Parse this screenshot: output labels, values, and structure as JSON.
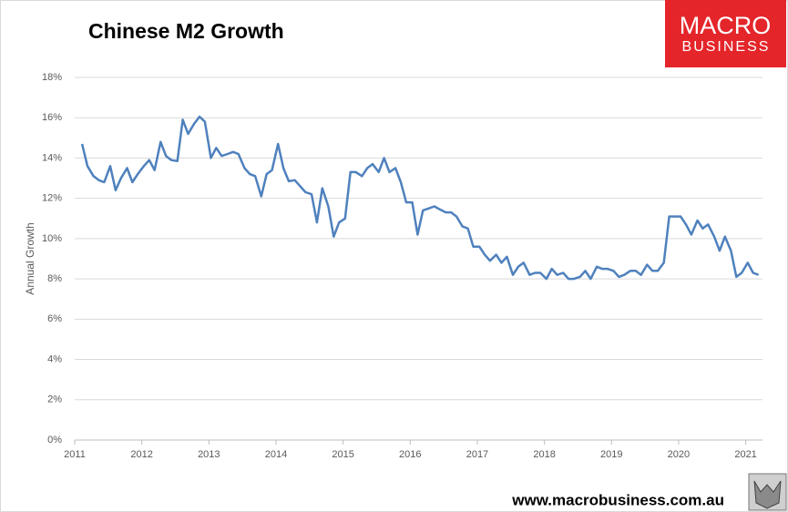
{
  "chart_data": {
    "type": "line",
    "title": "Chinese M2 Growth",
    "y_label": "Annual Growth",
    "logo": [
      "MACRO",
      "BUSINESS"
    ],
    "footer": "www.macrobusiness.com.au",
    "xlim": [
      2011,
      2021.25
    ],
    "xticks": [
      2011,
      2012,
      2013,
      2014,
      2015,
      2016,
      2017,
      2018,
      2019,
      2020,
      2021
    ],
    "ylim": [
      0,
      18
    ],
    "yticks": [
      {
        "value": 0,
        "label": "0%"
      },
      {
        "value": 2,
        "label": "2%"
      },
      {
        "value": 4,
        "label": "4%"
      },
      {
        "value": 6,
        "label": "6%"
      },
      {
        "value": 8,
        "label": "8%"
      },
      {
        "value": 10,
        "label": "10%"
      },
      {
        "value": 12,
        "label": "12%"
      },
      {
        "value": 14,
        "label": "14%"
      },
      {
        "value": 16,
        "label": "16%"
      },
      {
        "value": 18,
        "label": "18%"
      }
    ],
    "grid": true,
    "series": [
      {
        "name": "M2",
        "color": "#4f81bd",
        "x": [
          2011.11,
          2011.19,
          2011.28,
          2011.36,
          2011.44,
          2011.53,
          2011.61,
          2011.69,
          2011.78,
          2011.86,
          2011.94,
          2012.03,
          2012.11,
          2012.19,
          2012.28,
          2012.36,
          2012.44,
          2012.53,
          2012.61,
          2012.69,
          2012.78,
          2012.86,
          2012.94,
          2013.03,
          2013.11,
          2013.19,
          2013.28,
          2013.36,
          2013.44,
          2013.53,
          2013.61,
          2013.69,
          2013.78,
          2013.86,
          2013.94,
          2014.03,
          2014.11,
          2014.19,
          2014.28,
          2014.36,
          2014.44,
          2014.53,
          2014.61,
          2014.69,
          2014.78,
          2014.86,
          2014.94,
          2015.03,
          2015.11,
          2015.19,
          2015.28,
          2015.36,
          2015.44,
          2015.53,
          2015.61,
          2015.69,
          2015.78,
          2015.86,
          2015.94,
          2016.03,
          2016.11,
          2016.19,
          2016.28,
          2016.36,
          2016.44,
          2016.53,
          2016.61,
          2016.69,
          2016.78,
          2016.86,
          2016.94,
          2017.03,
          2017.11,
          2017.19,
          2017.28,
          2017.36,
          2017.44,
          2017.53,
          2017.61,
          2017.69,
          2017.78,
          2017.86,
          2017.94,
          2018.03,
          2018.11,
          2018.19,
          2018.28,
          2018.36,
          2018.44,
          2018.53,
          2018.61,
          2018.69,
          2018.78,
          2018.86,
          2018.94,
          2019.03,
          2019.11,
          2019.19,
          2019.28,
          2019.36,
          2019.44,
          2019.53,
          2019.61,
          2019.69,
          2019.78,
          2019.86,
          2019.94,
          2020.03,
          2020.11,
          2020.19,
          2020.28,
          2020.36,
          2020.44,
          2020.53,
          2020.61,
          2020.69,
          2020.78,
          2020.86,
          2020.94,
          2021.03,
          2021.11,
          2021.19
        ],
        "values": [
          14.7,
          13.6,
          13.1,
          12.9,
          12.8,
          13.6,
          12.4,
          13.0,
          13.5,
          12.8,
          13.2,
          13.6,
          13.9,
          13.4,
          14.8,
          14.1,
          13.9,
          13.85,
          15.9,
          15.2,
          15.7,
          16.05,
          15.8,
          14.0,
          14.5,
          14.1,
          14.2,
          14.3,
          14.2,
          13.5,
          13.2,
          13.1,
          12.1,
          13.2,
          13.4,
          14.7,
          13.5,
          12.85,
          12.9,
          12.6,
          12.3,
          12.2,
          10.8,
          12.5,
          11.6,
          10.1,
          10.8,
          11.0,
          13.3,
          13.3,
          13.1,
          13.5,
          13.7,
          13.3,
          14.0,
          13.3,
          13.5,
          12.8,
          11.8,
          11.8,
          10.2,
          11.4,
          11.5,
          11.6,
          11.45,
          11.3,
          11.3,
          11.1,
          10.6,
          10.5,
          9.6,
          9.6,
          9.2,
          8.9,
          9.2,
          8.8,
          9.1,
          8.2,
          8.6,
          8.8,
          8.2,
          8.3,
          8.3,
          8.0,
          8.5,
          8.2,
          8.3,
          8.0,
          8.0,
          8.1,
          8.4,
          8.0,
          8.6,
          8.5,
          8.5,
          8.4,
          8.1,
          8.2,
          8.4,
          8.4,
          8.2,
          8.7,
          8.4,
          8.4,
          8.8,
          11.1,
          11.1,
          11.1,
          10.7,
          10.2,
          10.9,
          10.5,
          10.7,
          10.1,
          9.4,
          10.1,
          9.4,
          8.1,
          8.3,
          8.8,
          8.3,
          8.2
        ]
      }
    ]
  }
}
